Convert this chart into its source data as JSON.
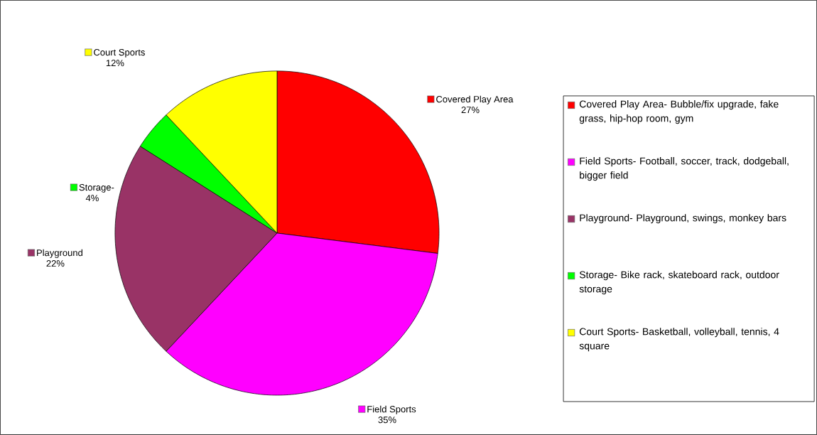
{
  "chart_data": {
    "type": "pie",
    "categories": [
      "Covered Play Area",
      "Field Sports",
      "Playground",
      "Storage-",
      "Court Sports"
    ],
    "values": [
      27,
      35,
      22,
      4,
      12
    ],
    "value_labels": [
      "27%",
      "35%",
      "22%",
      "4%",
      "12%"
    ],
    "colors": [
      "#ff0000",
      "#ff00ff",
      "#993366",
      "#00ff00",
      "#ffff00"
    ],
    "legend": "right",
    "annotations": [
      "Covered Play Area- Bubble/fix upgrade, fake grass, hip-hop room, gym",
      "Field Sports- Football, soccer, track, dodgeball, bigger field",
      "Playground- Playground, swings, monkey bars",
      "Storage- Bike rack, skateboard rack, outdoor storage",
      "Court Sports- Basketball, volleyball, tennis, 4 square"
    ]
  }
}
